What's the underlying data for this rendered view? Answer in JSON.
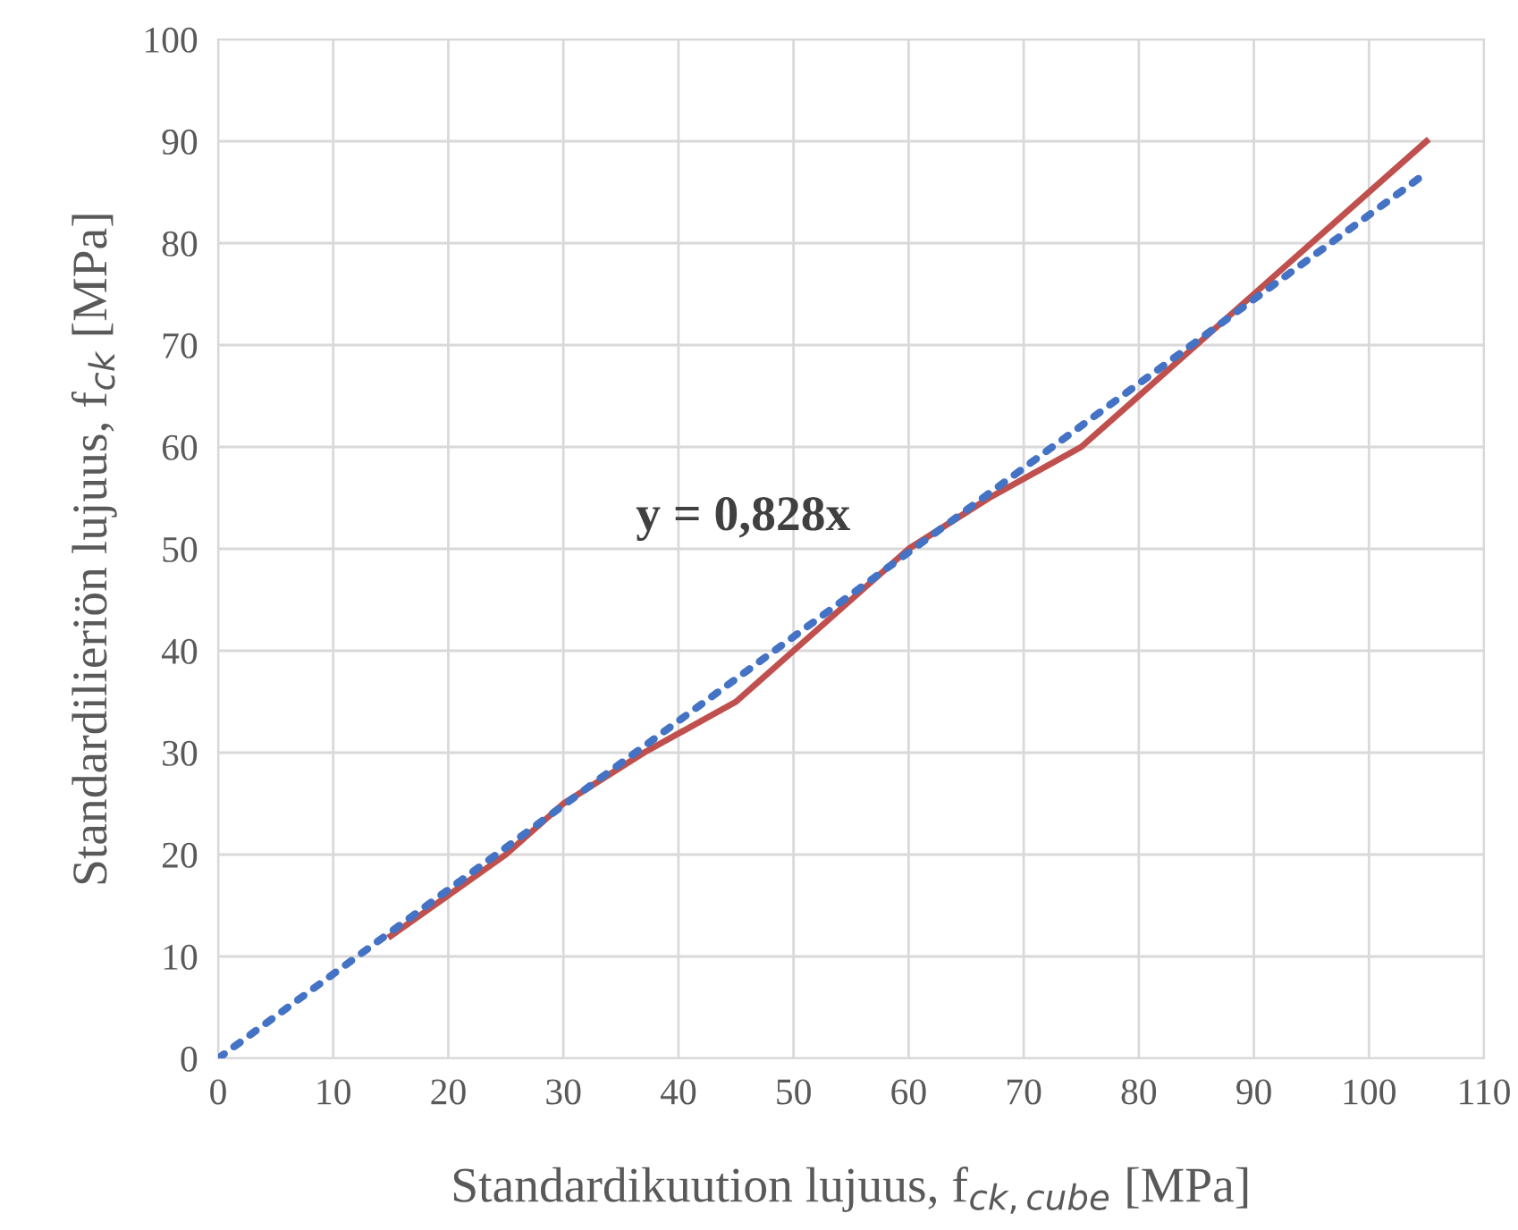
{
  "chart_data": {
    "type": "line",
    "xlabel": "Standardikuution lujuus, f$_{ck,cube}$ [MPa]",
    "ylabel": "Standardilieriön lujuus, f$_{ck}$ [MPa]",
    "series": [
      {
        "color": "#c0504d",
        "line_style": "solid",
        "x": [
          15,
          20,
          25,
          30,
          37,
          45,
          50,
          55,
          60,
          67,
          75,
          85,
          95,
          105
        ],
        "values": [
          12,
          16,
          20,
          25,
          30,
          35,
          40,
          45,
          50,
          55,
          60,
          70,
          80,
          90
        ]
      },
      {
        "color": "#4472c4",
        "line_style": "dotted",
        "x": [
          0,
          105
        ],
        "values": [
          0,
          86.9
        ]
      }
    ],
    "annotations": [
      "y = 0,828x"
    ],
    "xlim": [
      0,
      110
    ],
    "xticks": [
      0,
      10,
      20,
      30,
      40,
      50,
      60,
      70,
      80,
      90,
      100,
      110
    ],
    "ylim": [
      0,
      100
    ],
    "yticks": [
      0,
      10,
      20,
      30,
      40,
      50,
      60,
      70,
      80,
      90,
      100
    ],
    "grid": true,
    "marker": "none"
  }
}
